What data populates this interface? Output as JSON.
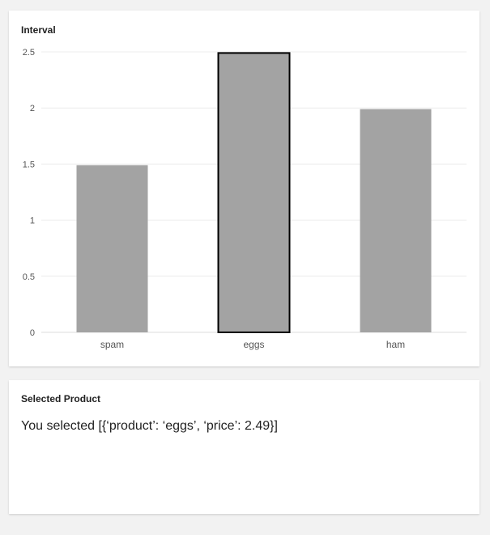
{
  "chart_card": {
    "title": "Interval"
  },
  "chart_data": {
    "type": "bar",
    "categories": [
      "spam",
      "eggs",
      "ham"
    ],
    "values": [
      1.49,
      2.49,
      1.99
    ],
    "ylim": [
      0,
      2.5
    ],
    "yticks": [
      "0",
      "0.5",
      "1",
      "1.5",
      "2",
      "2.5"
    ],
    "ytick_values": [
      0,
      0.5,
      1,
      1.5,
      2,
      2.5
    ],
    "grid": true,
    "bar_color": "#a3a3a3",
    "selected_index": 1,
    "selected_outline_color": "#000000"
  },
  "selected_card": {
    "title": "Selected Product",
    "text": "You selected [{‘product’: ‘eggs’, ‘price’: 2.49}]"
  }
}
